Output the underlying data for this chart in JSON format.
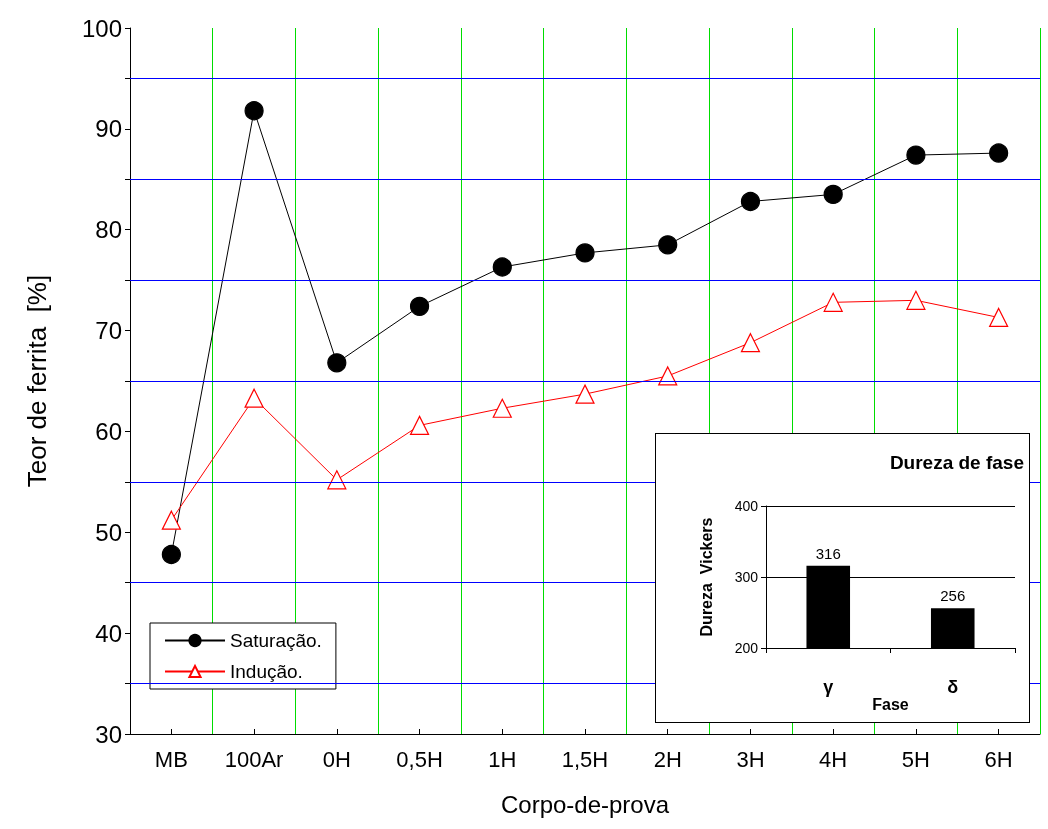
{
  "chart_data": [
    {
      "type": "line",
      "xlabel": "Corpo-de-prova",
      "ylabel": "Teor de ferrita  [%]",
      "categories": [
        "MB",
        "100Ar",
        "0H",
        "0,5H",
        "1H",
        "1,5H",
        "2H",
        "3H",
        "4H",
        "5H",
        "6H"
      ],
      "series": [
        {
          "name": "Saturação.",
          "color": "#000000",
          "marker": "circle",
          "values": [
            47.8,
            91.8,
            66.8,
            72.4,
            76.3,
            77.7,
            78.5,
            82.8,
            83.5,
            87.4,
            87.6
          ]
        },
        {
          "name": "Indução.",
          "color": "#ff0000",
          "marker": "triangle",
          "values": [
            51.2,
            63.3,
            55.2,
            60.6,
            62.3,
            63.7,
            65.5,
            68.8,
            72.8,
            73.0,
            71.3
          ]
        }
      ],
      "ylim": [
        30,
        100
      ],
      "yticks": [
        30,
        {
          "value": 35,
          "label": null
        },
        40,
        {
          "value": 45,
          "label": null
        },
        50,
        {
          "value": 55,
          "label": null
        },
        60,
        {
          "value": 65,
          "label": null
        },
        70,
        {
          "value": 75,
          "label": null
        },
        80,
        {
          "value": 85,
          "label": null
        },
        90,
        {
          "value": 95,
          "label": null
        },
        100
      ],
      "grid": true,
      "legend": "bottom left"
    },
    {
      "type": "bar",
      "title": "Dureza de fase",
      "xlabel": "Fase",
      "ylabel": "Dureza  Vickers",
      "categories": [
        "γ",
        "δ"
      ],
      "values": [
        316,
        256
      ],
      "color": "#000000",
      "data_labels": true,
      "ylim": [
        200,
        400
      ],
      "yticks": [
        200,
        300,
        400
      ],
      "grid": "y"
    }
  ]
}
